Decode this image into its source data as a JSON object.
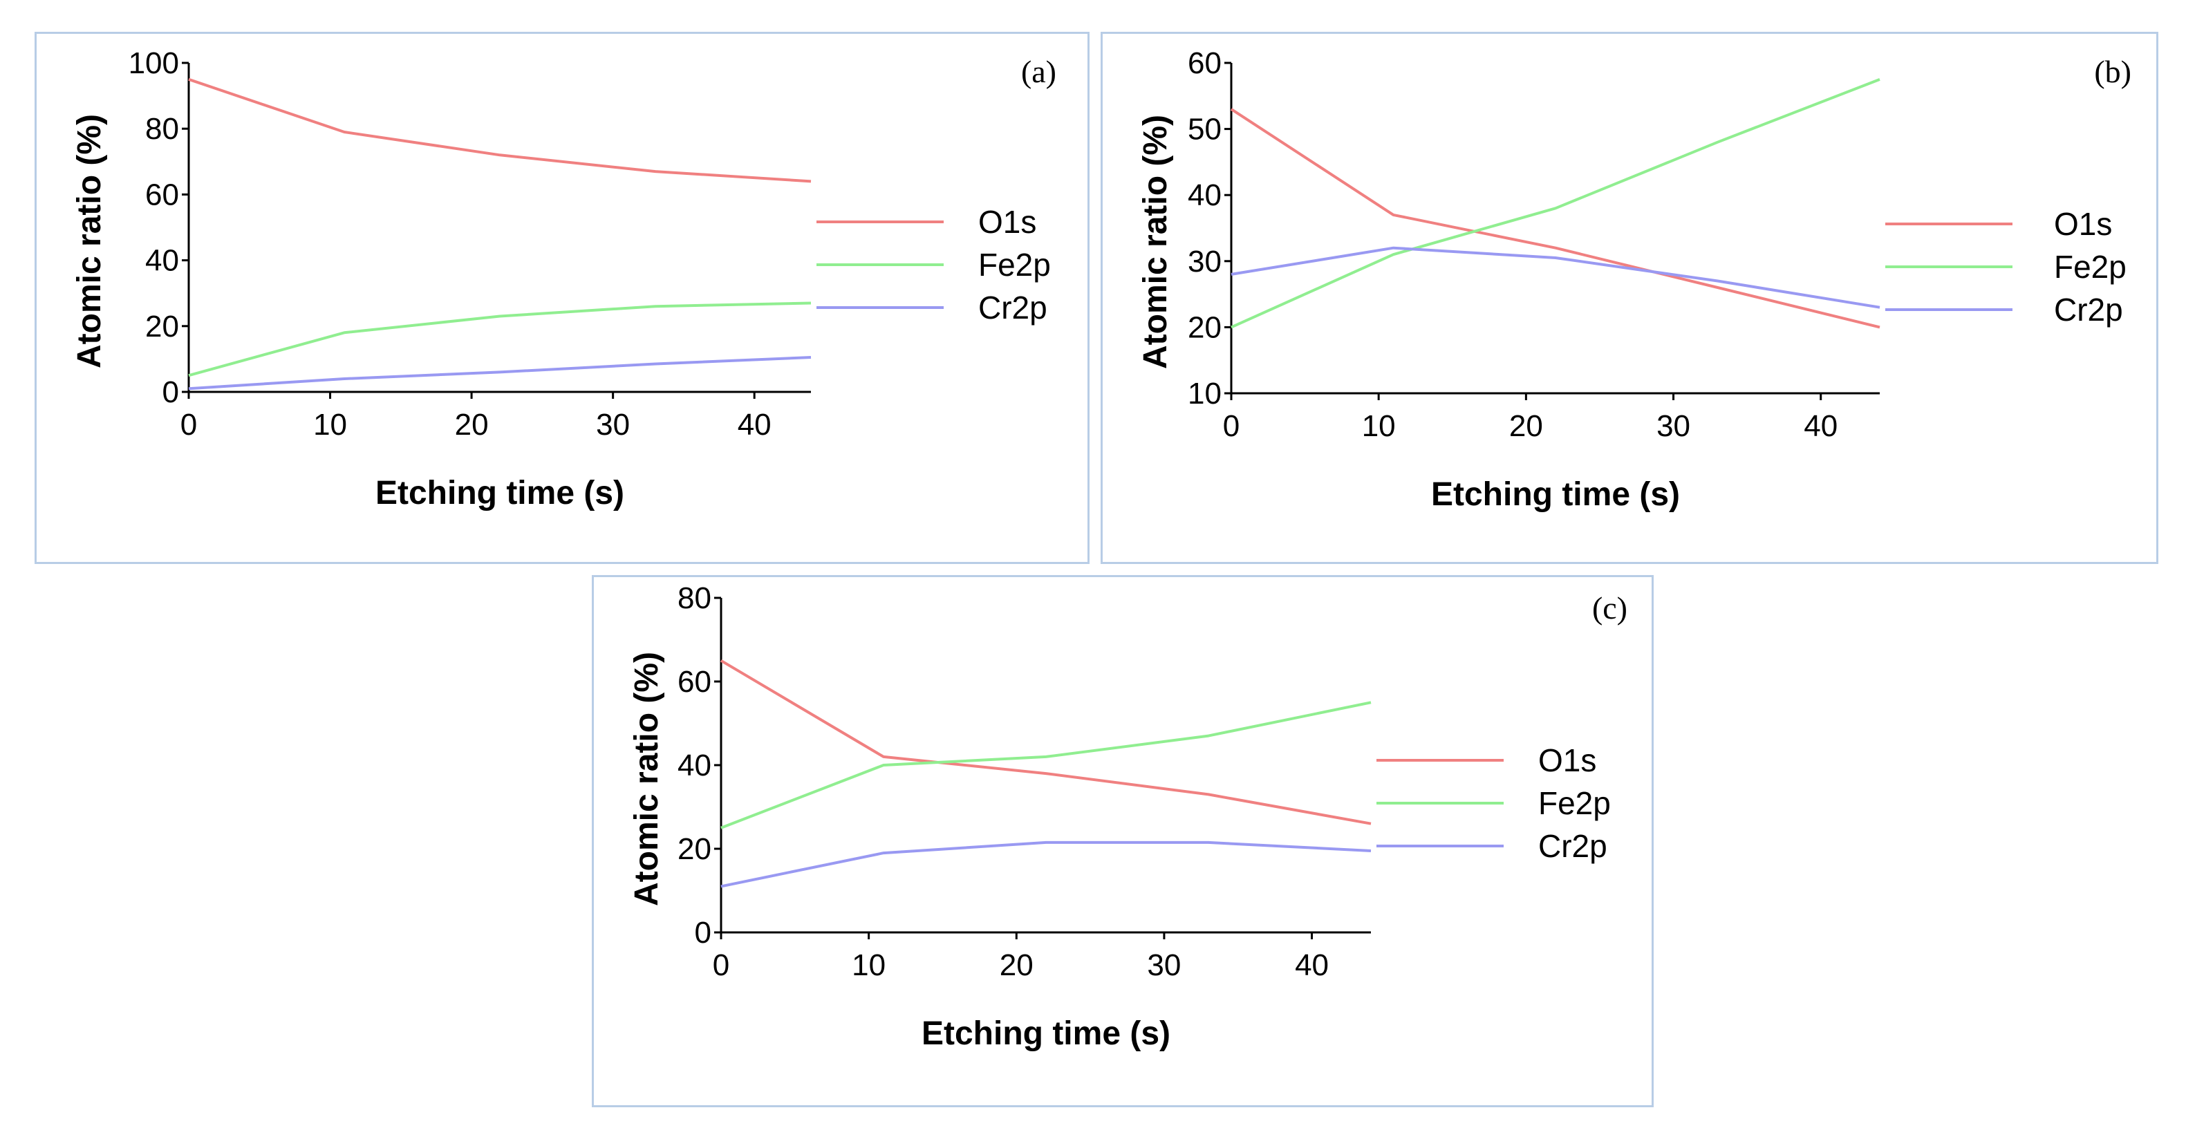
{
  "chart_data": [
    {
      "id": "a",
      "type": "line",
      "panel_label": "(a)",
      "title": "",
      "xlabel": "Etching time (s)",
      "ylabel": "Atomic ratio (%)",
      "xlim": [
        0,
        44
      ],
      "ylim": [
        0,
        100
      ],
      "xticks": [
        0,
        10,
        20,
        30,
        40
      ],
      "yticks": [
        0,
        20,
        40,
        60,
        80,
        100
      ],
      "legend_position": "right",
      "grid": false,
      "x": [
        0,
        11,
        22,
        33,
        44
      ],
      "series": [
        {
          "name": "O1s",
          "color": "#f08080",
          "values": [
            95,
            79,
            72,
            67,
            64
          ]
        },
        {
          "name": "Fe2p",
          "color": "#90ee90",
          "values": [
            5,
            18,
            23,
            26,
            27
          ]
        },
        {
          "name": "Cr2p",
          "color": "#9999f2",
          "values": [
            1,
            4,
            6,
            8.5,
            10.5
          ]
        }
      ]
    },
    {
      "id": "b",
      "type": "line",
      "panel_label": "(b)",
      "title": "",
      "xlabel": "Etching time (s)",
      "ylabel": "Atomic ratio (%)",
      "xlim": [
        0,
        44
      ],
      "ylim": [
        10,
        60
      ],
      "xticks": [
        0,
        10,
        20,
        30,
        40
      ],
      "yticks": [
        10,
        20,
        30,
        40,
        50,
        60
      ],
      "legend_position": "right",
      "grid": false,
      "x": [
        0,
        11,
        22,
        33,
        44
      ],
      "series": [
        {
          "name": "O1s",
          "color": "#f08080",
          "values": [
            53,
            37,
            32,
            26,
            20
          ]
        },
        {
          "name": "Fe2p",
          "color": "#90ee90",
          "values": [
            20,
            31,
            38,
            48,
            57.5
          ]
        },
        {
          "name": "Cr2p",
          "color": "#9999f2",
          "values": [
            28,
            32,
            30.5,
            27,
            23
          ]
        }
      ]
    },
    {
      "id": "c",
      "type": "line",
      "panel_label": "(c)",
      "title": "",
      "xlabel": "Etching time (s)",
      "ylabel": "Atomic ratio (%)",
      "xlim": [
        0,
        44
      ],
      "ylim": [
        0,
        80
      ],
      "xticks": [
        0,
        10,
        20,
        30,
        40
      ],
      "yticks": [
        0,
        20,
        40,
        60,
        80
      ],
      "legend_position": "right",
      "grid": false,
      "x": [
        0,
        11,
        22,
        33,
        44
      ],
      "series": [
        {
          "name": "O1s",
          "color": "#f08080",
          "values": [
            65,
            42,
            38,
            33,
            26
          ]
        },
        {
          "name": "Fe2p",
          "color": "#90ee90",
          "values": [
            25,
            40,
            42,
            47,
            55
          ]
        },
        {
          "name": "Cr2p",
          "color": "#9999f2",
          "values": [
            11,
            19,
            21.5,
            21.5,
            19.5
          ]
        }
      ]
    }
  ]
}
